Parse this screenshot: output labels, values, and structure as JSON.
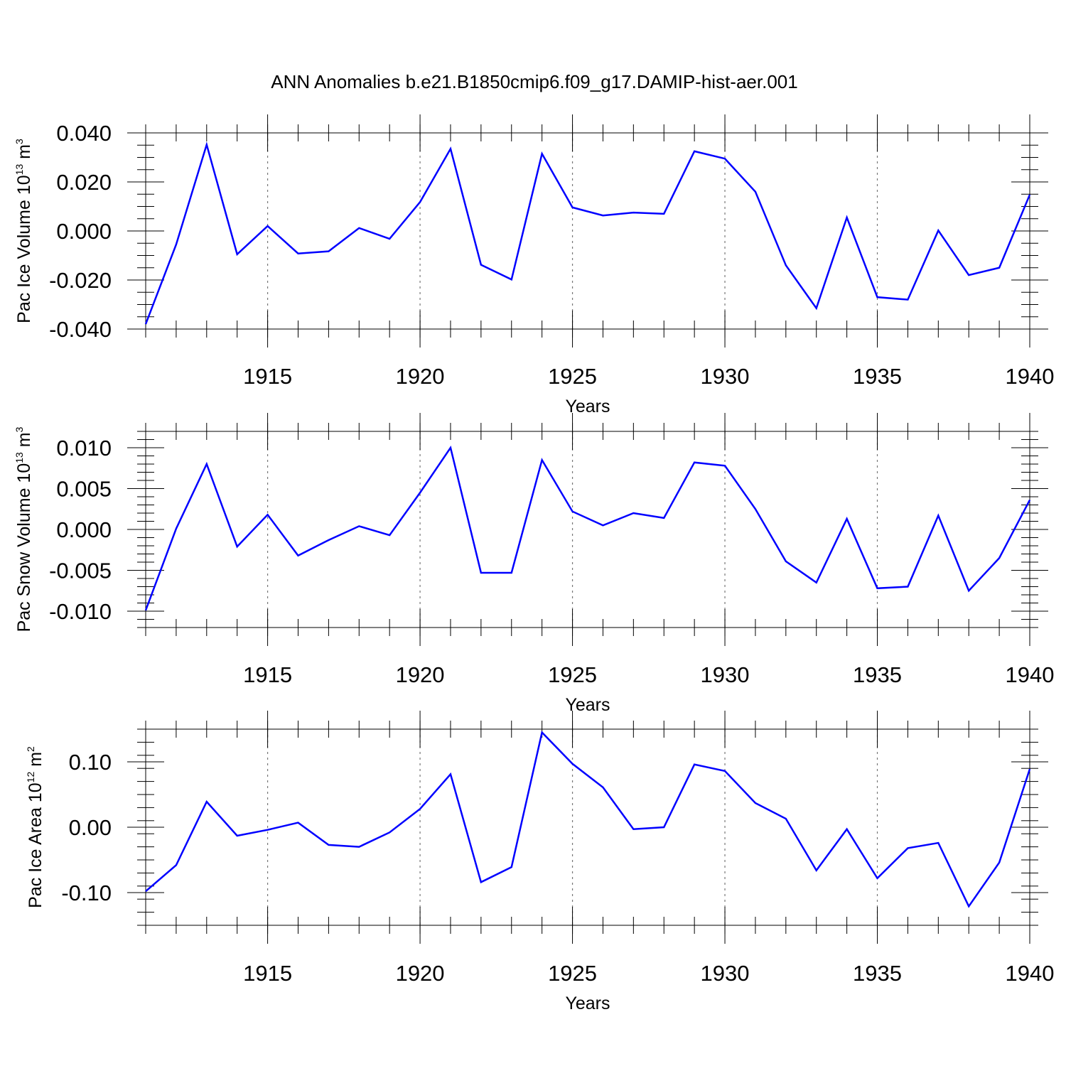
{
  "figure": {
    "title": "ANN Anomalies b.e21.B1850cmip6.f09_g17.DAMIP-hist-aer.001",
    "line_color": "#0000ff"
  },
  "chart_data": [
    {
      "type": "line",
      "title": "",
      "xlabel": "Years",
      "ylabel": {
        "base": "Pac Ice Volume 10",
        "exp": "13",
        "unit": " m",
        "unit_exp": "3"
      },
      "xlim": [
        1911,
        1940
      ],
      "ylim": [
        -0.04,
        0.04
      ],
      "x_ticks": [
        1915,
        1920,
        1925,
        1930,
        1935,
        1940
      ],
      "x_tick_labels": [
        "1915",
        "1920",
        "1925",
        "1930",
        "1935",
        "1940"
      ],
      "y_ticks": [
        -0.04,
        -0.02,
        0.0,
        0.02,
        0.04
      ],
      "y_tick_labels": [
        "-0.040",
        "-0.020",
        "0.000",
        "0.020",
        "0.040"
      ],
      "y_minor_step": 0.005,
      "grid": "vertical dashed at major x ticks",
      "x": [
        1911,
        1912,
        1913,
        1914,
        1915,
        1916,
        1917,
        1918,
        1919,
        1920,
        1921,
        1922,
        1923,
        1924,
        1925,
        1926,
        1927,
        1928,
        1929,
        1930,
        1931,
        1932,
        1933,
        1934,
        1935,
        1936,
        1937,
        1938,
        1939,
        1940
      ],
      "series": [
        {
          "values": [
            -0.038,
            -0.0055,
            0.0352,
            -0.0095,
            0.002,
            -0.0092,
            -0.0083,
            0.0012,
            -0.0032,
            0.0118,
            0.0335,
            -0.0138,
            -0.0198,
            0.0315,
            0.0096,
            0.0063,
            0.0075,
            0.007,
            0.0325,
            0.0295,
            0.016,
            -0.014,
            -0.0315,
            0.0055,
            -0.027,
            -0.028,
            0.0002,
            -0.018,
            -0.015,
            0.0148
          ]
        }
      ]
    },
    {
      "type": "line",
      "title": "",
      "xlabel": "Years",
      "ylabel": {
        "base": "Pac Snow Volume 10",
        "exp": "13",
        "unit": " m",
        "unit_exp": "3"
      },
      "xlim": [
        1911,
        1940
      ],
      "ylim": [
        -0.012,
        0.012
      ],
      "x_ticks": [
        1915,
        1920,
        1925,
        1930,
        1935,
        1940
      ],
      "x_tick_labels": [
        "1915",
        "1920",
        "1925",
        "1930",
        "1935",
        "1940"
      ],
      "y_ticks": [
        -0.01,
        -0.005,
        0.0,
        0.005,
        0.01
      ],
      "y_tick_labels": [
        "-0.010",
        "-0.005",
        "0.000",
        "0.005",
        "0.010"
      ],
      "y_minor_step": 0.001,
      "grid": "vertical dashed at major x ticks",
      "x": [
        1911,
        1912,
        1913,
        1914,
        1915,
        1916,
        1917,
        1918,
        1919,
        1920,
        1921,
        1922,
        1923,
        1924,
        1925,
        1926,
        1927,
        1928,
        1929,
        1930,
        1931,
        1932,
        1933,
        1934,
        1935,
        1936,
        1937,
        1938,
        1939,
        1940
      ],
      "series": [
        {
          "values": [
            -0.0099,
            0.0001,
            0.008,
            -0.0021,
            0.0018,
            -0.0032,
            -0.0013,
            0.0004,
            -0.0007,
            0.0045,
            0.01,
            -0.0053,
            -0.0053,
            0.0085,
            0.0022,
            0.0005,
            0.002,
            0.0014,
            0.0082,
            0.0078,
            0.0025,
            -0.0039,
            -0.0065,
            0.0013,
            -0.0072,
            -0.007,
            0.0017,
            -0.0075,
            -0.0035,
            0.0036
          ]
        }
      ]
    },
    {
      "type": "line",
      "title": "",
      "xlabel": "Years",
      "ylabel": {
        "base": "Pac Ice Area 10",
        "exp": "12",
        "unit": " m",
        "unit_exp": "2"
      },
      "xlim": [
        1911,
        1940
      ],
      "ylim": [
        -0.15,
        0.15
      ],
      "x_ticks": [
        1915,
        1920,
        1925,
        1930,
        1935,
        1940
      ],
      "x_tick_labels": [
        "1915",
        "1920",
        "1925",
        "1930",
        "1935",
        "1940"
      ],
      "y_ticks": [
        -0.1,
        0.0,
        0.1
      ],
      "y_tick_labels": [
        "-0.10",
        "0.00",
        "0.10"
      ],
      "y_minor_step": 0.02,
      "grid": "vertical dashed at major x ticks",
      "x": [
        1911,
        1912,
        1913,
        1914,
        1915,
        1916,
        1917,
        1918,
        1919,
        1920,
        1921,
        1922,
        1923,
        1924,
        1925,
        1926,
        1927,
        1928,
        1929,
        1930,
        1931,
        1932,
        1933,
        1934,
        1935,
        1936,
        1937,
        1938,
        1939,
        1940
      ],
      "series": [
        {
          "values": [
            -0.098,
            -0.058,
            0.039,
            -0.013,
            -0.004,
            0.007,
            -0.027,
            -0.03,
            -0.008,
            0.028,
            0.081,
            -0.084,
            -0.061,
            0.145,
            0.097,
            0.061,
            -0.003,
            0.0,
            0.096,
            0.086,
            0.037,
            0.013,
            -0.066,
            -0.003,
            -0.078,
            -0.032,
            -0.024,
            -0.121,
            -0.054,
            0.089
          ]
        }
      ]
    }
  ]
}
